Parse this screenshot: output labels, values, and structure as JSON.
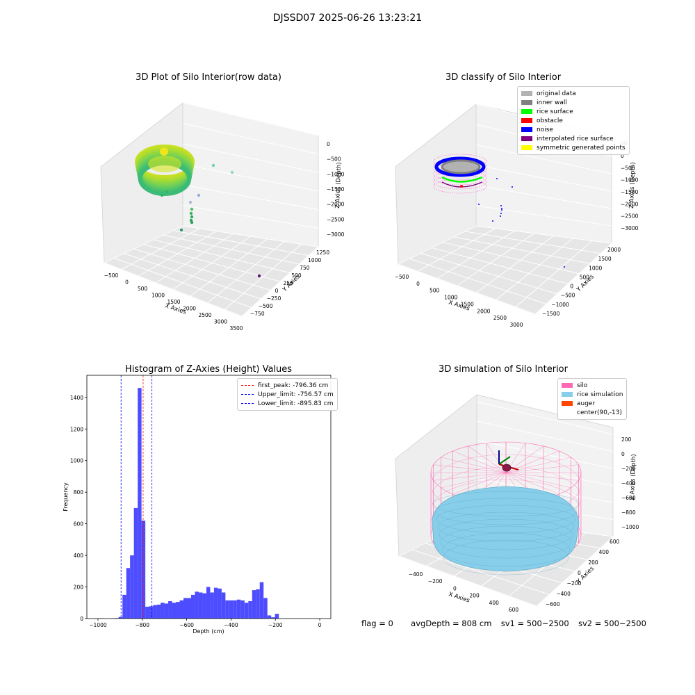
{
  "figure": {
    "suptitle": "DJSSD07 2025-06-26 13:23:21",
    "footer": {
      "flag": "flag = 0",
      "avg_depth": "avgDepth = 808 cm",
      "sv1": "sv1 = 500~2500",
      "sv2": "sv2 = 500~2500"
    }
  },
  "colors": {
    "original": "#b2b2b2",
    "inner_wall": "#808080",
    "rice_surface": "#00ff00",
    "obstacle": "#ff0000",
    "noise": "#0000ff",
    "interp": "#800080",
    "symmetric": "#ffff00",
    "silo": "#ff69b4",
    "rice_sim": "#87ceeb",
    "auger": "#ff4500",
    "hist_bar": "#4d4dff"
  },
  "chart_data": [
    {
      "type": "scatter",
      "title": "3D Plot of Silo Interior(row data)",
      "xlabel": "X Axies",
      "ylabel": "Y Axies",
      "zlabel": "Z Axies (Depth)",
      "x_ticks": [
        "−500",
        "0",
        "500",
        "1000",
        "1500",
        "2000",
        "2500",
        "3000",
        "3500"
      ],
      "y_ticks": [
        "−750",
        "−500",
        "−250",
        "0",
        "250",
        "500",
        "750",
        "1000",
        "1250"
      ],
      "z_ticks": [
        "0",
        "−500",
        "−1000",
        "−1500",
        "−2000",
        "−2500",
        "−3000"
      ],
      "xlim": [
        -600,
        3600
      ],
      "ylim": [
        -800,
        1300
      ],
      "zlim": [
        -3300,
        100
      ]
    },
    {
      "type": "scatter",
      "title": "3D classify of Silo Interior",
      "xlabel": "X Axies",
      "ylabel": "Y Axies",
      "zlabel": "Z Axies (Depth)",
      "x_ticks": [
        "−500",
        "0",
        "500",
        "1000",
        "1500",
        "2000",
        "2500",
        "3000"
      ],
      "y_ticks": [
        "−1500",
        "−1000",
        "−500",
        "0",
        "500",
        "1000",
        "1500",
        "2000"
      ],
      "z_ticks": [
        "0",
        "−500",
        "−1000",
        "−1500",
        "−2000",
        "−2500",
        "−3000"
      ],
      "z_extra_tick": "00",
      "legend": [
        "original data",
        "inner wall",
        "rice surface",
        "obstacle",
        "noise",
        "interpolated rice surface",
        "symmetric generated points"
      ]
    },
    {
      "type": "bar",
      "title": "Histogram of Z-Axies (Height) Values",
      "xlabel": "Depth (cm)",
      "ylabel": "Frequency",
      "xlim": [
        -1050,
        50
      ],
      "ylim": [
        0,
        1540
      ],
      "x_ticks": [
        -1000,
        -800,
        -600,
        -400,
        -200,
        0
      ],
      "x_tick_labels": [
        "−1000",
        "−800",
        "−600",
        "−400",
        "−200",
        "0"
      ],
      "y_ticks": [
        0,
        200,
        400,
        600,
        800,
        1000,
        1200,
        1400
      ],
      "bin_start": -1010,
      "bin_width": 17.2,
      "values": [
        0,
        2,
        0,
        0,
        1,
        3,
        10,
        150,
        320,
        400,
        700,
        1460,
        620,
        75,
        78,
        85,
        88,
        100,
        95,
        110,
        100,
        105,
        115,
        130,
        130,
        150,
        170,
        165,
        160,
        200,
        165,
        195,
        190,
        165,
        115,
        115,
        115,
        120,
        115,
        100,
        110,
        180,
        185,
        230,
        130,
        20,
        8,
        30
      ],
      "vlines": [
        {
          "label": "first_peak: -796.36 cm",
          "x": -796.36,
          "color": "#ff0000"
        },
        {
          "label": "Upper_limit: -756.57 cm",
          "x": -756.57,
          "color": "#0000ff"
        },
        {
          "label": "Lower_limit: -895.83 cm",
          "x": -895.83,
          "color": "#0000ff"
        }
      ]
    },
    {
      "type": "area",
      "title": "3D simulation of Silo Interior",
      "xlabel": "X Axies",
      "ylabel": "Y Axies",
      "zlabel": "Z Axies (Depth)",
      "x_ticks": [
        "−400",
        "−200",
        "0",
        "200",
        "400",
        "600"
      ],
      "y_ticks": [
        "−600",
        "−400",
        "−200",
        "0",
        "200",
        "400",
        "600"
      ],
      "z_ticks": [
        "200",
        "0",
        "−200",
        "−400",
        "−600",
        "−800",
        "−1000"
      ],
      "legend": [
        "silo",
        "rice simulation",
        "auger",
        "center(90,-13)"
      ]
    }
  ]
}
